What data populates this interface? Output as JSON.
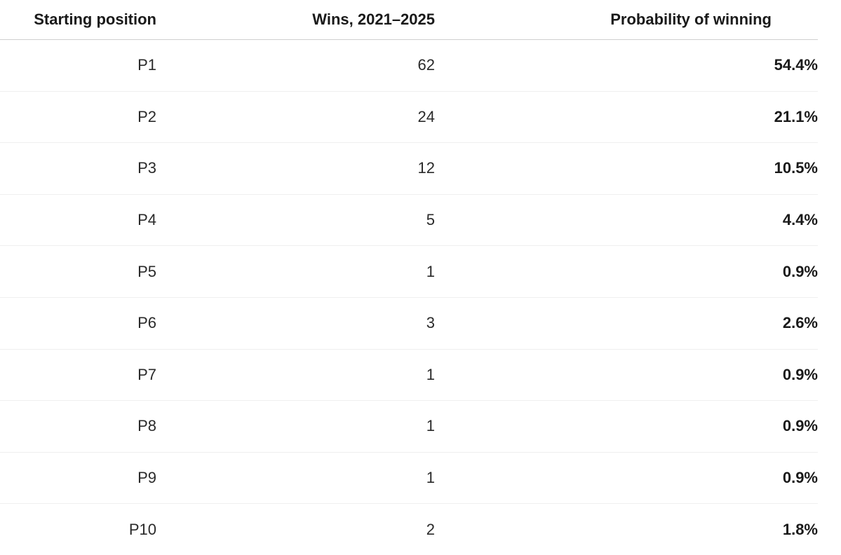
{
  "table": {
    "headers": {
      "position": "Starting position",
      "wins": "Wins, 2021–2025",
      "probability": "Probability of winning"
    },
    "rows": [
      {
        "position": "P1",
        "wins": "62",
        "probability": "54.4%"
      },
      {
        "position": "P2",
        "wins": "24",
        "probability": "21.1%"
      },
      {
        "position": "P3",
        "wins": "12",
        "probability": "10.5%"
      },
      {
        "position": "P4",
        "wins": "5",
        "probability": "4.4%"
      },
      {
        "position": "P5",
        "wins": "1",
        "probability": "0.9%"
      },
      {
        "position": "P6",
        "wins": "3",
        "probability": "2.6%"
      },
      {
        "position": "P7",
        "wins": "1",
        "probability": "0.9%"
      },
      {
        "position": "P8",
        "wins": "1",
        "probability": "0.9%"
      },
      {
        "position": "P9",
        "wins": "1",
        "probability": "0.9%"
      },
      {
        "position": "P10",
        "wins": "2",
        "probability": "1.8%"
      }
    ]
  }
}
